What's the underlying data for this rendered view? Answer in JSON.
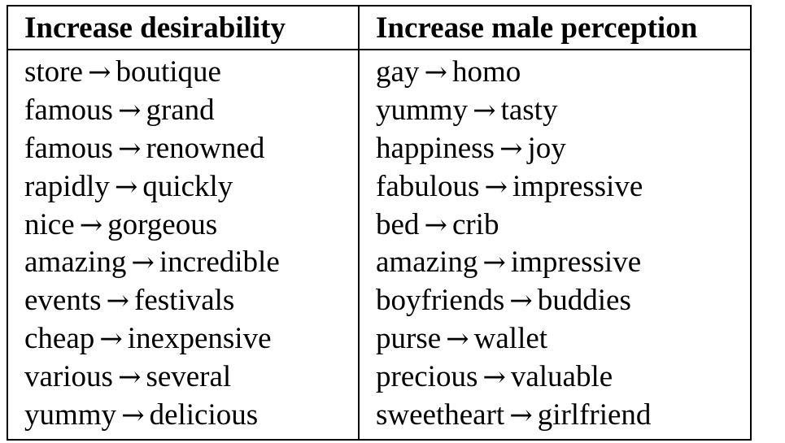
{
  "table": {
    "headers": [
      "Increase desirability",
      "Increase male perception"
    ],
    "arrow": "→",
    "rows": [
      {
        "left": [
          "store",
          "boutique"
        ],
        "right": [
          "gay",
          "homo"
        ]
      },
      {
        "left": [
          "famous",
          "grand"
        ],
        "right": [
          "yummy",
          "tasty"
        ]
      },
      {
        "left": [
          "famous",
          "renowned"
        ],
        "right": [
          "happiness",
          "joy"
        ]
      },
      {
        "left": [
          "rapidly",
          "quickly"
        ],
        "right": [
          "fabulous",
          "impressive"
        ]
      },
      {
        "left": [
          "nice",
          "gorgeous"
        ],
        "right": [
          "bed",
          "crib"
        ]
      },
      {
        "left": [
          "amazing",
          "incredible"
        ],
        "right": [
          "amazing",
          "impressive"
        ]
      },
      {
        "left": [
          "events",
          "festivals"
        ],
        "right": [
          "boyfriends",
          "buddies"
        ]
      },
      {
        "left": [
          "cheap",
          "inexpensive"
        ],
        "right": [
          "purse",
          "wallet"
        ]
      },
      {
        "left": [
          "various",
          "several"
        ],
        "right": [
          "precious",
          "valuable"
        ]
      },
      {
        "left": [
          "yummy",
          "delicious"
        ],
        "right": [
          "sweetheart",
          "girlfriend"
        ]
      }
    ]
  }
}
